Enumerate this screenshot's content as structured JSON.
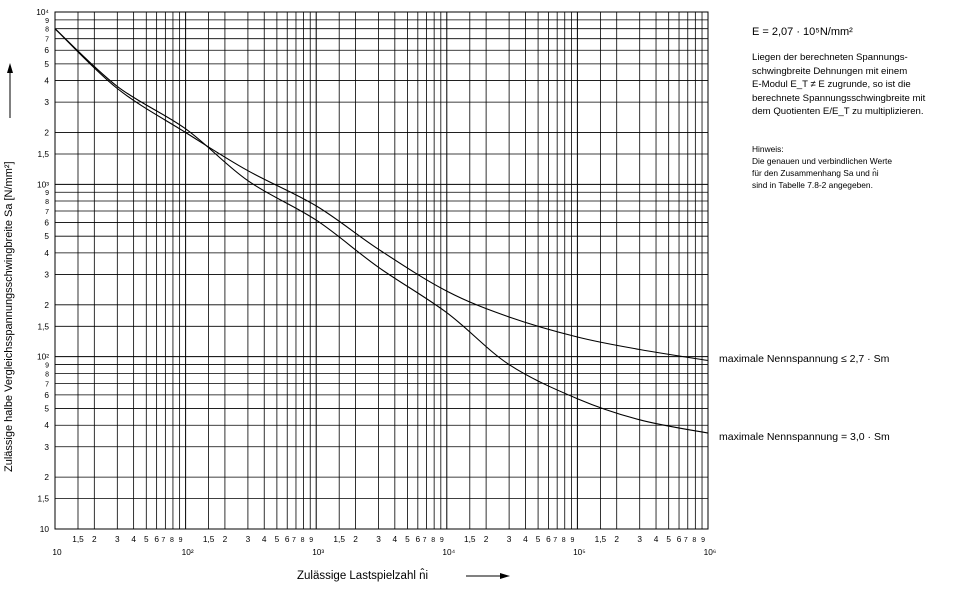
{
  "notes": {
    "e_modulus": "E = 2,07 · 10⁵N/mm²",
    "paragraph": [
      "Liegen der berechneten Spannungs-",
      "schwingbreite Dehnungen mit einem",
      "E-Modul E_T ≠ E zugrunde, so ist die",
      "berechnete Spannungsschwingbreite mit",
      "dem Quotienten E/E_T  zu multiplizieren."
    ],
    "hint_title": "Hinweis:",
    "hint_lines": [
      "Die genauen und verbindlichen Werte",
      "für den Zusammenhang  Sa und n̂i",
      "sind in Tabelle 7.8-2 angegeben."
    ]
  },
  "chart_data": {
    "type": "line",
    "x_scale": "log",
    "y_scale": "log",
    "xlim": [
      10,
      1000000
    ],
    "ylim": [
      10,
      10000
    ],
    "grid": true,
    "xlabel": "Zulässige Lastspielzahl  n̂i",
    "ylabel": "Zulässige halbe Vergleichsspannungsschwingbreite  Sa  [N/mm²]",
    "x_decade_labels": [
      "10",
      "10²",
      "10³",
      "10⁴",
      "10⁵",
      "10⁶"
    ],
    "y_decade_labels": [
      "10",
      "10²",
      "10³",
      "10⁴"
    ],
    "minor_tick_labels": [
      "1,5",
      "2",
      "3",
      "4",
      "5",
      "6",
      "7",
      "8",
      "9"
    ],
    "series": [
      {
        "name": "maximale Nennspannung ≤ 2,7 · Sm",
        "x": [
          10,
          30,
          100,
          300,
          1000,
          3000,
          10000,
          30000,
          100000,
          300000,
          1000000
        ],
        "y": [
          8000,
          3600,
          2000,
          1200,
          750,
          420,
          240,
          170,
          130,
          110,
          95
        ]
      },
      {
        "name": "maximale Nennspannung = 3,0 · Sm",
        "x": [
          10,
          30,
          100,
          300,
          1000,
          3000,
          10000,
          30000,
          100000,
          300000,
          1000000
        ],
        "y": [
          8000,
          3700,
          2100,
          1050,
          620,
          330,
          180,
          90,
          57,
          43,
          36
        ]
      }
    ]
  }
}
